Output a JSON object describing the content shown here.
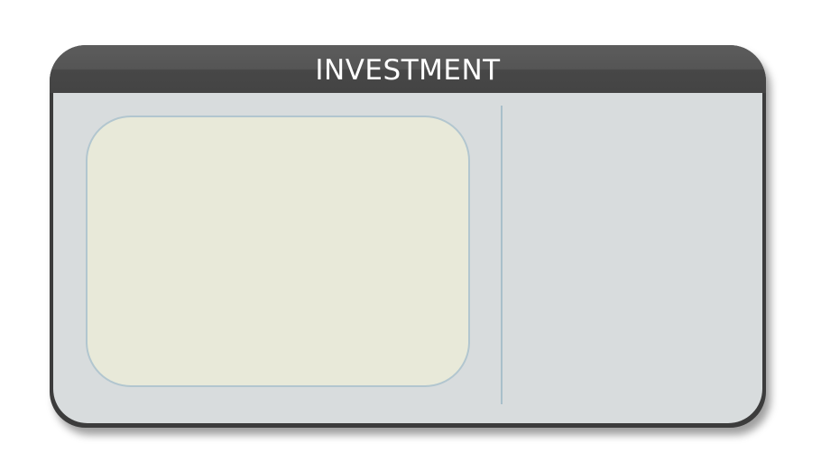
{
  "panel": {
    "title": "INVESTMENT"
  },
  "colors": {
    "header": "#4a4a4a",
    "frame": "#3c3c3c",
    "body": "#d8dcdd",
    "display_fill": "#e8e9d9",
    "display_border": "#b2c6cf",
    "divider": "#a9bfca",
    "title_text": "#ffffff"
  }
}
